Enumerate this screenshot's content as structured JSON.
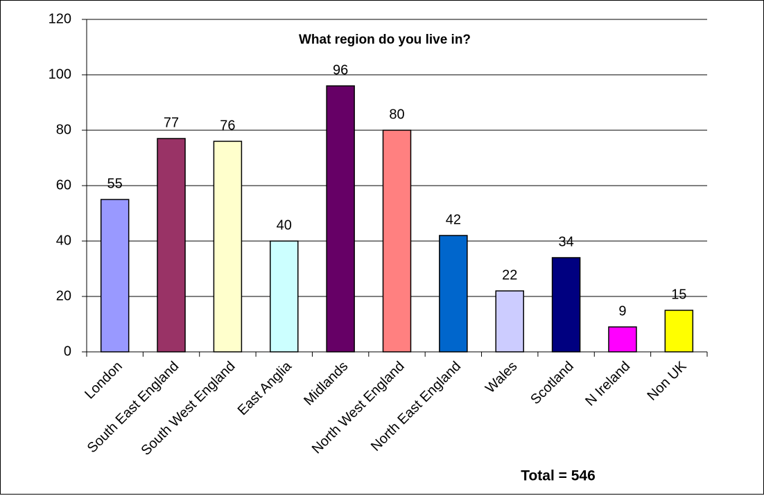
{
  "chart_data": {
    "type": "bar",
    "title": "What region do you live in?",
    "categories": [
      "London",
      "South East England",
      "South West England",
      "East Anglia",
      "Midlands",
      "North West England",
      "North East England",
      "Wales",
      "Scotland",
      "N Ireland",
      "Non UK"
    ],
    "values": [
      55,
      77,
      76,
      40,
      96,
      80,
      42,
      22,
      34,
      9,
      15
    ],
    "colors": [
      "#9999ff",
      "#993366",
      "#ffffcc",
      "#ccffff",
      "#660066",
      "#ff8080",
      "#0066cc",
      "#ccccff",
      "#000080",
      "#ff00ff",
      "#ffff00"
    ],
    "ylim": [
      0,
      120
    ],
    "yticks": [
      0,
      20,
      40,
      60,
      80,
      100,
      120
    ],
    "grid": true,
    "annotations": [
      "Total = 546"
    ]
  }
}
